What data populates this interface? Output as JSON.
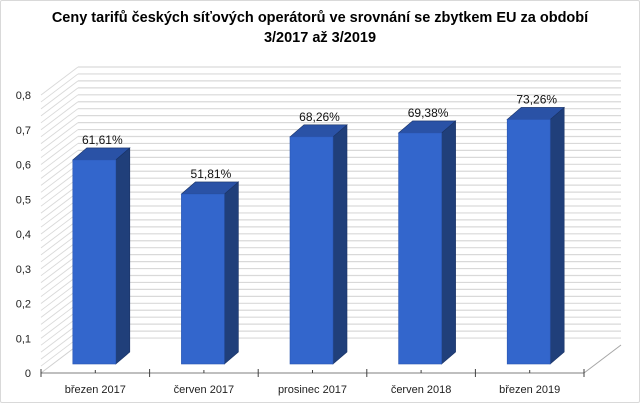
{
  "chart_data": {
    "type": "bar",
    "style": "3d-column",
    "title_line1": "Ceny tarifů českých síťových operátorů ve srovnání se zbytkem EU za období",
    "title_line2": "3/2017 až 3/2019",
    "categories": [
      "březen 2017",
      "červen 2017",
      "prosinec 2017",
      "červen 2018",
      "březen 2019"
    ],
    "values": [
      0.6161,
      0.5181,
      0.6826,
      0.6938,
      0.7326
    ],
    "data_labels": [
      "61,61%",
      "51,81%",
      "68,26%",
      "69,38%",
      "73,26%"
    ],
    "y_ticks": [
      "0",
      "0,1",
      "0,2",
      "0,3",
      "0,4",
      "0,5",
      "0,6",
      "0,7",
      "0,8"
    ],
    "ylim": [
      0,
      0.8
    ],
    "xlabel": "",
    "ylabel": "",
    "grid": true,
    "legend": "none",
    "colors": {
      "front": "#3366cc",
      "side": "#203f7a",
      "top": "#2a52a6",
      "grid": "#d9d9d9"
    }
  }
}
